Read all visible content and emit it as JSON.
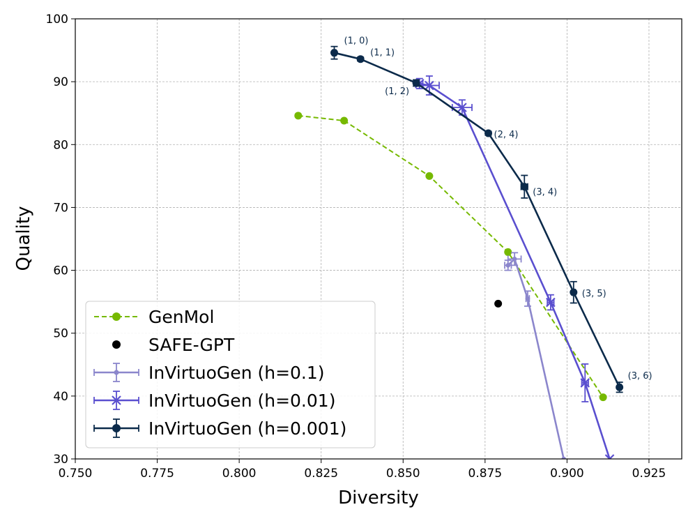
{
  "chart_data": {
    "type": "line",
    "xlabel": "Diversity",
    "ylabel": "Quality",
    "xlim": [
      0.75,
      0.935
    ],
    "ylim": [
      30,
      100
    ],
    "xticks": [
      "0.750",
      "0.775",
      "0.800",
      "0.825",
      "0.850",
      "0.875",
      "0.900",
      "0.925"
    ],
    "yticks": [
      "30",
      "40",
      "50",
      "60",
      "70",
      "80",
      "90",
      "100"
    ],
    "grid": true,
    "legend_position": "lower-left",
    "series": [
      {
        "name": "GenMol",
        "color": "#76b900",
        "style": "dashed",
        "marker": "circle",
        "points": [
          {
            "x": 0.818,
            "y": 84.6
          },
          {
            "x": 0.832,
            "y": 83.8
          },
          {
            "x": 0.858,
            "y": 75.0
          },
          {
            "x": 0.882,
            "y": 62.9
          },
          {
            "x": 0.911,
            "y": 39.8
          }
        ]
      },
      {
        "name": "SAFE-GPT",
        "color": "#000000",
        "style": "none",
        "marker": "circle",
        "points": [
          {
            "x": 0.879,
            "y": 54.7
          }
        ]
      },
      {
        "name": "InVirtuoGen (h=0.1)",
        "color": "#8b86cc",
        "style": "solid",
        "marker": "dot",
        "points": [
          {
            "x": 0.882,
            "y": 60.8,
            "xerr": 0.001,
            "yerr": 0.8
          },
          {
            "x": 0.884,
            "y": 61.8,
            "xerr": 0.002,
            "yerr": 1.0
          },
          {
            "x": 0.888,
            "y": 55.5,
            "xerr": 0.0005,
            "yerr": 1.2
          },
          {
            "x": 0.899,
            "y": 30.0,
            "xerr": 0.0,
            "yerr": 0.0
          }
        ]
      },
      {
        "name": "InVirtuoGen (h=0.01)",
        "color": "#5a4fcf",
        "style": "solid",
        "marker": "x",
        "points": [
          {
            "x": 0.855,
            "y": 89.7,
            "xerr": 0.001,
            "yerr": 0.8
          },
          {
            "x": 0.858,
            "y": 89.4,
            "xerr": 0.003,
            "yerr": 1.5
          },
          {
            "x": 0.868,
            "y": 85.9,
            "xerr": 0.003,
            "yerr": 1.2
          },
          {
            "x": 0.895,
            "y": 54.9,
            "xerr": 0.001,
            "yerr": 1.2
          },
          {
            "x": 0.9055,
            "y": 42.1,
            "xerr": 0.001,
            "yerr": 3.0
          },
          {
            "x": 0.913,
            "y": 30.0,
            "xerr": 0.0,
            "yerr": 0.0
          }
        ]
      },
      {
        "name": "InVirtuoGen (h=0.001)",
        "color": "#0b2a4a",
        "style": "solid",
        "marker": "circle",
        "points": [
          {
            "x": 0.829,
            "y": 94.6,
            "xerr": 0.0005,
            "yerr": 1.0,
            "label": "(1, 0)"
          },
          {
            "x": 0.837,
            "y": 93.6,
            "xerr": 0.0003,
            "yerr": 0.3,
            "label": "(1, 1)"
          },
          {
            "x": 0.854,
            "y": 89.8,
            "xerr": 0.0005,
            "yerr": 0.5,
            "label": "(1, 2)"
          },
          {
            "x": 0.876,
            "y": 81.8,
            "xerr": 0.0003,
            "yerr": 0.3,
            "label": "(2, 4)"
          },
          {
            "x": 0.887,
            "y": 73.3,
            "xerr": 0.001,
            "yerr": 1.8,
            "label": "(3, 4)"
          },
          {
            "x": 0.902,
            "y": 56.5,
            "xerr": 0.0005,
            "yerr": 1.7,
            "label": "(3, 5)"
          },
          {
            "x": 0.916,
            "y": 41.4,
            "xerr": 0.0005,
            "yerr": 0.8,
            "label": "(3, 6)"
          }
        ]
      }
    ]
  }
}
